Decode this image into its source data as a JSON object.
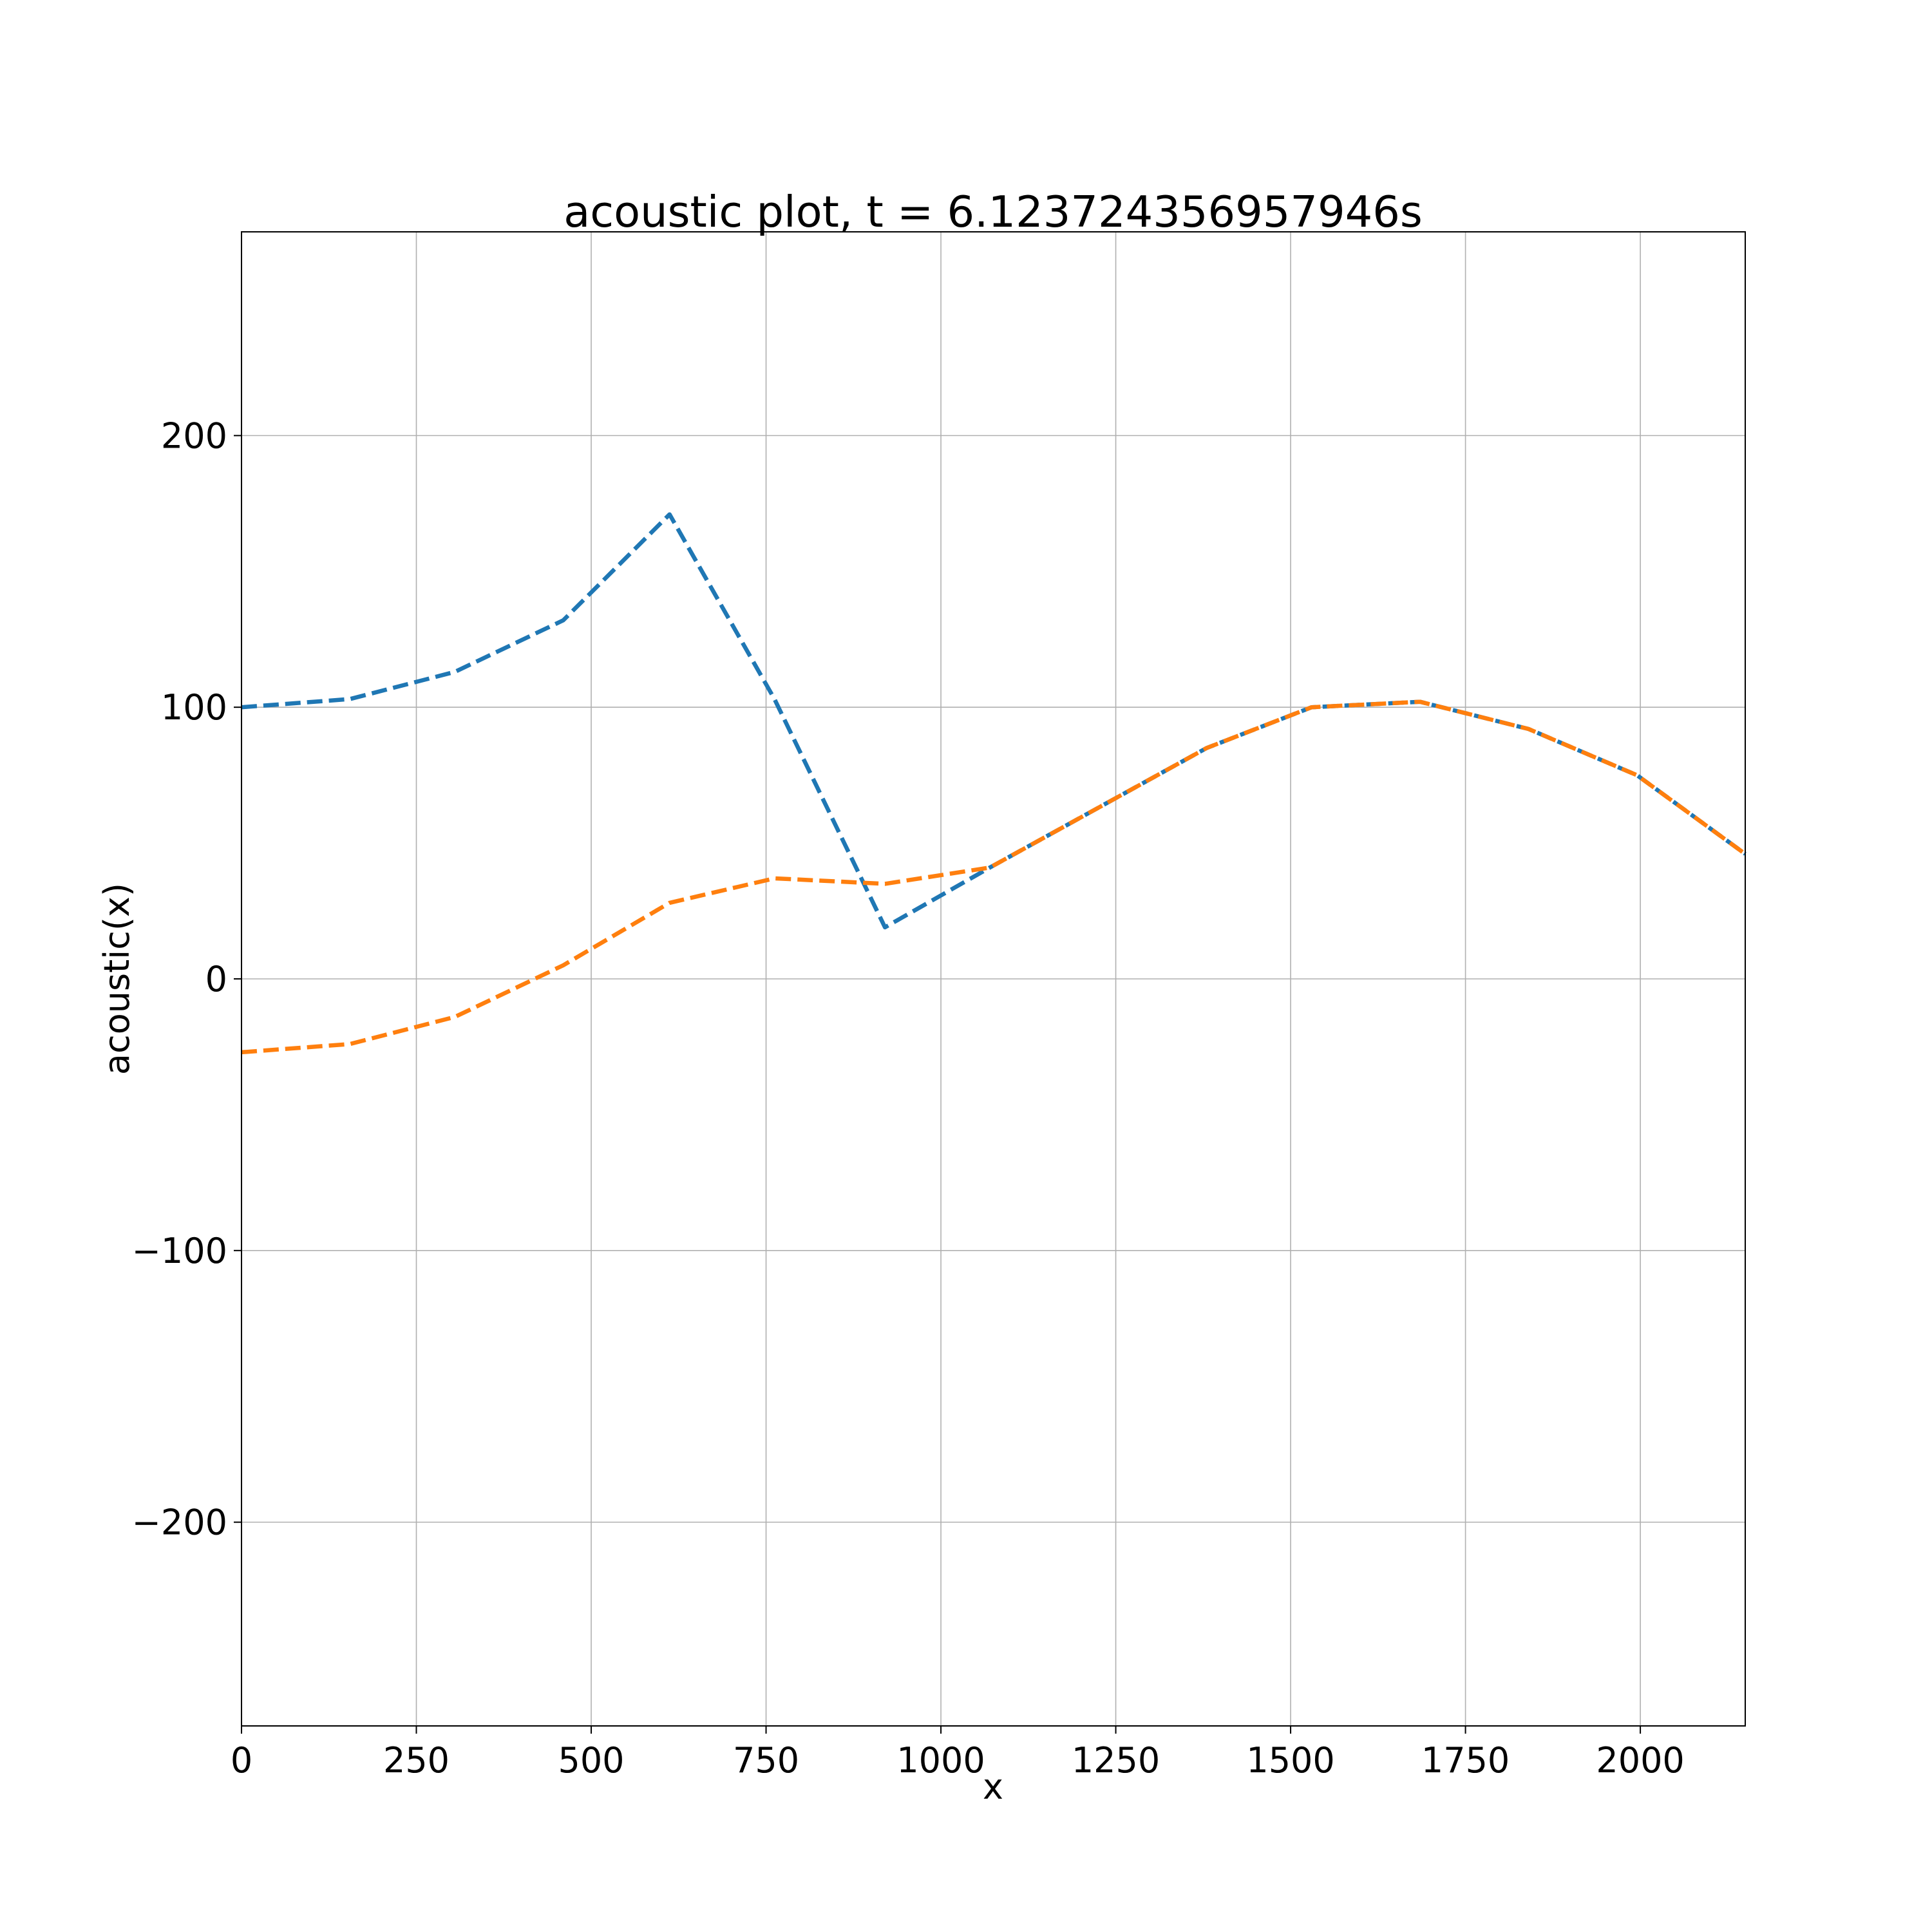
{
  "chart_data": {
    "type": "line",
    "title": "acoustic plot, t = 6.123724356957946s",
    "xlabel": "x",
    "ylabel": "acoustic(x)",
    "xlim": [
      0,
      2150
    ],
    "ylim": [
      -275,
      275
    ],
    "xticks": [
      0,
      250,
      500,
      750,
      1000,
      1250,
      1500,
      1750,
      2000
    ],
    "xtick_labels": [
      "0",
      "250",
      "500",
      "750",
      "1000",
      "1250",
      "1500",
      "1750",
      "2000"
    ],
    "yticks": [
      -200,
      -100,
      0,
      100,
      200
    ],
    "ytick_labels": [
      "−200",
      "−100",
      "0",
      "100",
      "200"
    ],
    "grid": true,
    "series": [
      {
        "color": "#1f77b4",
        "linestyle": "dashed",
        "x": [
          0,
          155,
          305,
          460,
          612,
          762,
          920,
          1070,
          1225,
          1380,
          1530,
          1685,
          1840,
          1995,
          2150
        ],
        "y": [
          100,
          103,
          113,
          132,
          171,
          103,
          19,
          41,
          63,
          85,
          100,
          102,
          92,
          75,
          46
        ]
      },
      {
        "color": "#ff7f0e",
        "linestyle": "dashed",
        "x": [
          0,
          155,
          305,
          460,
          612,
          762,
          920,
          1070,
          1225,
          1380,
          1530,
          1685,
          1840,
          1995,
          2150
        ],
        "y": [
          -27,
          -24,
          -14,
          5,
          28,
          37,
          35,
          41,
          63,
          85,
          100,
          102,
          92,
          75,
          46
        ]
      }
    ]
  }
}
